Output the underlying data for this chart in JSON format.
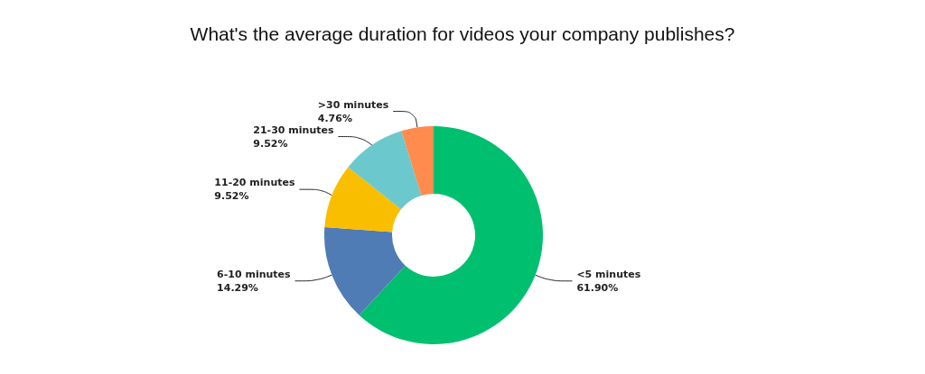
{
  "chart_data": {
    "type": "donut",
    "title": "What's the average duration for videos your company publishes?",
    "categories": [
      "<5 minutes",
      "6-10 minutes",
      "11-20 minutes",
      "21-30 minutes",
      ">30 minutes"
    ],
    "values": [
      61.9,
      14.29,
      9.52,
      9.52,
      4.76
    ],
    "colors": [
      "#00bf6f",
      "#507cb6",
      "#f9be00",
      "#6bc8cd",
      "#ff8b4f"
    ],
    "value_labels": [
      "61.90%",
      "14.29%",
      "9.52%",
      "9.52%",
      "4.76%"
    ]
  }
}
